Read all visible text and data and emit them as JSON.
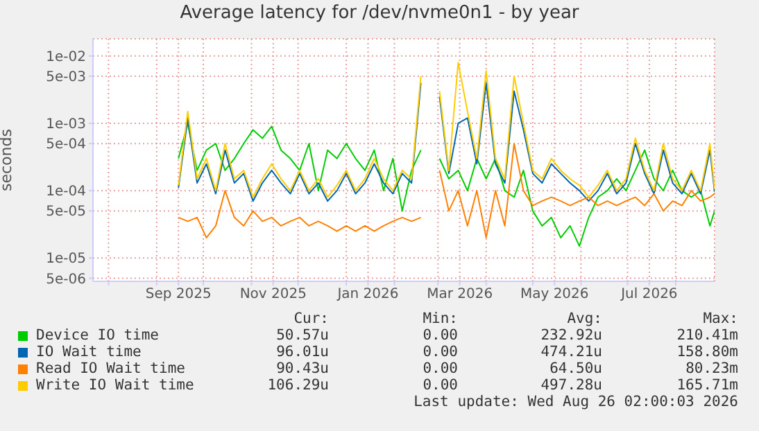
{
  "chart_data": {
    "type": "line",
    "title": "Average latency for /dev/nvme0n1 - by year",
    "ylabel": "seconds",
    "log": "y",
    "grid": true,
    "legend": "bottom",
    "marker": "none",
    "line_style": "solid",
    "x": [
      "2025-09-15",
      "2025-09-21",
      "2025-09-27",
      "2025-10-03",
      "2025-10-09",
      "2025-10-15",
      "2025-10-21",
      "2025-10-27",
      "2025-11-02",
      "2025-11-08",
      "2025-11-14",
      "2025-11-20",
      "2025-11-26",
      "2025-12-02",
      "2025-12-08",
      "2025-12-14",
      "2025-12-20",
      "2025-12-26",
      "2026-01-01",
      "2026-01-07",
      "2026-01-13",
      "2026-01-19",
      "2026-01-25",
      "2026-01-31",
      "2026-02-06",
      "2026-02-12",
      "2026-02-18",
      "2026-02-24",
      "2026-03-02",
      "2026-03-08",
      "2026-03-14",
      "2026-03-20",
      "2026-03-26",
      "2026-04-01",
      "2026-04-07",
      "2026-04-13",
      "2026-04-19",
      "2026-04-25",
      "2026-05-01",
      "2026-05-07",
      "2026-05-13",
      "2026-05-19",
      "2026-05-25",
      "2026-05-31",
      "2026-06-06",
      "2026-06-12",
      "2026-06-18",
      "2026-06-24",
      "2026-06-30",
      "2026-07-06",
      "2026-07-12",
      "2026-07-18",
      "2026-07-24",
      "2026-07-30",
      "2026-08-05",
      "2026-08-11",
      "2026-08-17",
      "2026-08-23",
      "2026-08-26"
    ],
    "xlim": [
      "2025-07-22",
      "2026-08-26"
    ],
    "xticks": [
      {
        "value": "2025-08-01",
        "label": null
      },
      {
        "value": "2025-09-01",
        "label": null
      },
      {
        "value": "2025-09-15",
        "label": "Sep 2025"
      },
      {
        "value": "2025-10-01",
        "label": null
      },
      {
        "value": "2025-11-01",
        "label": null
      },
      {
        "value": "2025-11-15",
        "label": "Nov 2025"
      },
      {
        "value": "2025-12-01",
        "label": null
      },
      {
        "value": "2026-01-01",
        "label": null
      },
      {
        "value": "2026-01-15",
        "label": "Jan 2026"
      },
      {
        "value": "2026-02-01",
        "label": null
      },
      {
        "value": "2026-03-01",
        "label": null
      },
      {
        "value": "2026-03-15",
        "label": "Mar 2026"
      },
      {
        "value": "2026-04-01",
        "label": null
      },
      {
        "value": "2026-05-01",
        "label": null
      },
      {
        "value": "2026-05-15",
        "label": "May 2026"
      },
      {
        "value": "2026-06-01",
        "label": null
      },
      {
        "value": "2026-07-01",
        "label": null
      },
      {
        "value": "2026-07-15",
        "label": "Jul 2026"
      },
      {
        "value": "2026-08-01",
        "label": null
      }
    ],
    "ylim": [
      4.5e-06,
      0.018
    ],
    "yticks": [
      {
        "value": 5e-06,
        "label": "5e-06"
      },
      {
        "value": 1e-05,
        "label": "1e-05"
      },
      {
        "value": 5e-05,
        "label": "5e-05"
      },
      {
        "value": 0.0001,
        "label": "1e-04"
      },
      {
        "value": 0.0005,
        "label": "5e-04"
      },
      {
        "value": 0.001,
        "label": "1e-03"
      },
      {
        "value": 0.005,
        "label": "5e-03"
      },
      {
        "value": 0.01,
        "label": "1e-02"
      }
    ],
    "series": [
      {
        "name": "Device IO time",
        "color": "#00cc00",
        "values": [
          0.0003,
          0.001,
          0.0002,
          0.0004,
          0.0005,
          0.0002,
          0.0003,
          0.0005,
          0.0008,
          0.0006,
          0.0009,
          0.0004,
          0.0003,
          0.0002,
          0.0005,
          0.0001,
          0.0004,
          0.0003,
          0.0005,
          0.0003,
          0.0002,
          0.0004,
          0.0001,
          0.0003,
          5e-05,
          0.0002,
          0.0004,
          null,
          0.0003,
          0.00015,
          0.0002,
          0.0001,
          0.0003,
          0.00015,
          0.0003,
          0.0001,
          8e-05,
          0.0002,
          5e-05,
          3e-05,
          4e-05,
          2e-05,
          3e-05,
          1.5e-05,
          4e-05,
          8e-05,
          0.0001,
          0.00015,
          0.0001,
          0.0002,
          0.0004,
          0.00015,
          0.0001,
          0.0002,
          0.0001,
          8e-05,
          0.0001,
          3e-05,
          5e-05
        ]
      },
      {
        "name": "IO Wait time",
        "color": "#0066b3",
        "values": [
          0.00011,
          0.0012,
          0.00013,
          0.00025,
          9e-05,
          0.0004,
          0.00013,
          0.00018,
          7e-05,
          0.00013,
          0.0002,
          0.00013,
          9e-05,
          0.00018,
          9e-05,
          0.00013,
          7e-05,
          0.0001,
          0.00018,
          9e-05,
          0.00013,
          0.00025,
          0.00013,
          9e-05,
          0.00018,
          0.00013,
          0.004,
          null,
          0.0025,
          0.00018,
          0.001,
          0.0012,
          0.00025,
          0.004,
          0.00025,
          0.00013,
          0.003,
          0.0008,
          0.00018,
          0.00013,
          0.00025,
          0.00018,
          0.00013,
          0.0001,
          7e-05,
          0.0001,
          0.00018,
          9e-05,
          0.00013,
          0.0005,
          0.00018,
          9e-05,
          0.0004,
          0.00013,
          9e-05,
          0.00018,
          9e-05,
          0.0004,
          9.6e-05
        ]
      },
      {
        "name": "Read IO Wait time",
        "color": "#ff8000",
        "values": [
          4e-05,
          3.5e-05,
          4e-05,
          2e-05,
          3e-05,
          0.0001,
          4e-05,
          3e-05,
          5e-05,
          3.5e-05,
          4e-05,
          3e-05,
          3.5e-05,
          4e-05,
          3e-05,
          3.5e-05,
          3e-05,
          2.5e-05,
          3e-05,
          2.5e-05,
          3e-05,
          2.5e-05,
          3e-05,
          3.5e-05,
          4e-05,
          3.5e-05,
          4e-05,
          null,
          0.0002,
          5e-05,
          0.0001,
          3e-05,
          0.0001,
          2e-05,
          0.0001,
          3e-05,
          0.0005,
          0.0001,
          6e-05,
          7e-05,
          8e-05,
          7e-05,
          6e-05,
          7e-05,
          8e-05,
          6e-05,
          7e-05,
          6e-05,
          7e-05,
          8e-05,
          6e-05,
          9e-05,
          5e-05,
          7e-05,
          6e-05,
          0.0001,
          7e-05,
          8e-05,
          9e-05
        ]
      },
      {
        "name": "Write IO Wait time",
        "color": "#ffcc00",
        "values": [
          0.00012,
          0.0015,
          0.00015,
          0.0003,
          0.0001,
          0.0005,
          0.00015,
          0.0002,
          8e-05,
          0.00015,
          0.00025,
          0.00015,
          0.0001,
          0.0002,
          0.0001,
          0.00015,
          8e-05,
          0.00012,
          0.0002,
          0.0001,
          0.00015,
          0.0003,
          0.00015,
          0.0001,
          0.0002,
          0.00015,
          0.005,
          null,
          0.003,
          0.0002,
          0.008,
          0.0015,
          0.0003,
          0.006,
          0.0003,
          0.00015,
          0.005,
          0.001,
          0.0002,
          0.00015,
          0.0003,
          0.0002,
          0.00015,
          0.00012,
          8e-05,
          0.00012,
          0.0002,
          0.0001,
          0.00015,
          0.0006,
          0.0002,
          0.0001,
          0.0005,
          0.00015,
          0.0001,
          0.0002,
          0.0001,
          0.0005,
          0.000106
        ]
      }
    ],
    "annotations": [
      "Cur:",
      "Min:",
      "Avg:",
      "Max:",
      "50.57u",
      "0.00",
      "232.92u",
      "210.41m",
      "96.01u",
      "0.00",
      "474.21u",
      "158.80m",
      "90.43u",
      "0.00",
      "64.50u",
      "80.23m",
      "106.29u",
      "0.00",
      "497.28u",
      "165.71m",
      "Last update: Wed Aug 26 02:00:03 2026"
    ]
  }
}
